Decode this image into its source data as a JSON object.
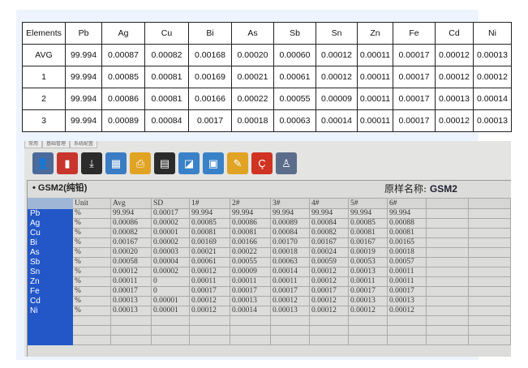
{
  "summary_table": {
    "header": [
      "Elements",
      "Pb",
      "Ag",
      "Cu",
      "Bi",
      "As",
      "Sb",
      "Sn",
      "Zn",
      "Fe",
      "Cd",
      "Ni"
    ],
    "rows": [
      [
        "AVG",
        "99.994",
        "0.00087",
        "0.00082",
        "0.00168",
        "0.00020",
        "0.00060",
        "0.00012",
        "0.00011",
        "0.00017",
        "0.00012",
        "0.00013"
      ],
      [
        "1",
        "99.994",
        "0.00085",
        "0.00081",
        "0.00169",
        "0.00021",
        "0.00061",
        "0.00012",
        "0.00011",
        "0.00017",
        "0.00012",
        "0.00012"
      ],
      [
        "2",
        "99.994",
        "0.00086",
        "0.00081",
        "0.00166",
        "0.00022",
        "0.00055",
        "0.00009",
        "0.00011",
        "0.00017",
        "0.00013",
        "0.00014"
      ],
      [
        "3",
        "99.994",
        "0.00089",
        "0.00084",
        "0.0017",
        "0.00018",
        "0.00063",
        "0.00014",
        "0.00011",
        "0.00017",
        "0.00012",
        "0.00013"
      ]
    ]
  },
  "app": {
    "tabs": [
      "常用",
      "基础管理",
      "系统配置"
    ],
    "toolbar_icons": [
      {
        "name": "user-icon",
        "color": "#4d6b9a",
        "glyph": "👤"
      },
      {
        "name": "database-add-icon",
        "color": "#c8352c",
        "glyph": "▮"
      },
      {
        "name": "chart-import-icon",
        "color": "#2b2b2b",
        "glyph": "⤓"
      },
      {
        "name": "spreadsheet-icon",
        "color": "#3b7dc4",
        "glyph": "▦"
      },
      {
        "name": "printer-icon",
        "color": "#e0a323",
        "glyph": "⎙"
      },
      {
        "name": "document-icon",
        "color": "#2b2b2b",
        "glyph": "▤"
      },
      {
        "name": "spectrum-icon",
        "color": "#3a82c8",
        "glyph": "◪"
      },
      {
        "name": "image-icon",
        "color": "#3a82c8",
        "glyph": "▣"
      },
      {
        "name": "tag-icon",
        "color": "#e0a323",
        "glyph": "✎"
      },
      {
        "name": "calibration-icon",
        "color": "#d03322",
        "glyph": "Ç"
      },
      {
        "name": "operator-icon",
        "color": "#5c6d8c",
        "glyph": "♙"
      }
    ],
    "section_title": "• GSM2(纯铅)",
    "sample_label": "原样名称:",
    "sample_name": "GSM2",
    "grid_header": [
      "",
      "Unit",
      "Avg",
      "SD",
      "1#",
      "2#",
      "3#",
      "4#",
      "5#",
      "6#",
      "",
      ""
    ],
    "grid_rows": [
      [
        "Pb",
        "%",
        "99.994",
        "0.00017",
        "99.994",
        "99.994",
        "99.994",
        "99.994",
        "99.994",
        "99.994"
      ],
      [
        "Ag",
        "%",
        "0.00086",
        "0.00002",
        "0.00085",
        "0.00086",
        "0.00089",
        "0.00084",
        "0.00085",
        "0.00088"
      ],
      [
        "Cu",
        "%",
        "0.00082",
        "0.00001",
        "0.00081",
        "0.00081",
        "0.00084",
        "0.00082",
        "0.00081",
        "0.00081"
      ],
      [
        "Bi",
        "%",
        "0.00167",
        "0.00002",
        "0.00169",
        "0.00166",
        "0.00170",
        "0.00167",
        "0.00167",
        "0.00165"
      ],
      [
        "As",
        "%",
        "0.00020",
        "0.00003",
        "0.00021",
        "0.00022",
        "0.00018",
        "0.00024",
        "0.00019",
        "0.00018"
      ],
      [
        "Sb",
        "%",
        "0.00058",
        "0.00004",
        "0.00061",
        "0.00055",
        "0.00063",
        "0.00059",
        "0.00053",
        "0.00057"
      ],
      [
        "Sn",
        "%",
        "0.00012",
        "0.00002",
        "0.00012",
        "0.00009",
        "0.00014",
        "0.00012",
        "0.00013",
        "0.00011"
      ],
      [
        "Zn",
        "%",
        "0.00011",
        "0",
        "0.00011",
        "0.00011",
        "0.00011",
        "0.00012",
        "0.00011",
        "0.00011"
      ],
      [
        "Fe",
        "%",
        "0.00017",
        "0",
        "0.00017",
        "0.00017",
        "0.00017",
        "0.00017",
        "0.00017",
        "0.00017"
      ],
      [
        "Cd",
        "%",
        "0.00013",
        "0.00001",
        "0.00012",
        "0.00013",
        "0.00012",
        "0.00012",
        "0.00013",
        "0.00013"
      ],
      [
        "Ni",
        "%",
        "0.00013",
        "0.00001",
        "0.00012",
        "0.00014",
        "0.00013",
        "0.00012",
        "0.00012",
        "0.00012"
      ]
    ]
  }
}
